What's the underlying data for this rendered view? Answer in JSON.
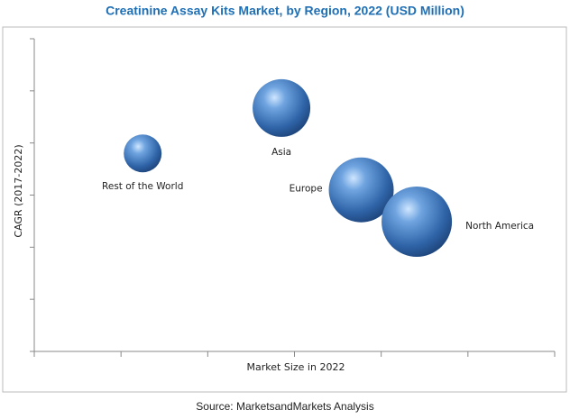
{
  "chart_data": {
    "type": "bubble",
    "title": "Creatinine Assay Kits Market, by Region, 2022 (USD Million)",
    "xlabel": "Market Size in 2022",
    "ylabel": "CAGR (2017-2022)",
    "source": "Source: MarketsandMarkets Analysis",
    "color": "#3a78c2",
    "xlim": [
      0,
      6
    ],
    "ylim": [
      0,
      6
    ],
    "xticks": [
      0,
      1,
      2,
      3,
      4,
      5,
      6
    ],
    "yticks": [
      0,
      1,
      2,
      3,
      4,
      5,
      6
    ],
    "series": [
      {
        "name": null,
        "labels": [
          "Rest of the World",
          "Asia",
          "Europe",
          "North America"
        ],
        "x": [
          1.25,
          2.85,
          3.77,
          4.41
        ],
        "values": [
          3.8,
          4.67,
          3.1,
          2.49
        ],
        "sizes": [
          21,
          32,
          36,
          39
        ]
      }
    ]
  }
}
